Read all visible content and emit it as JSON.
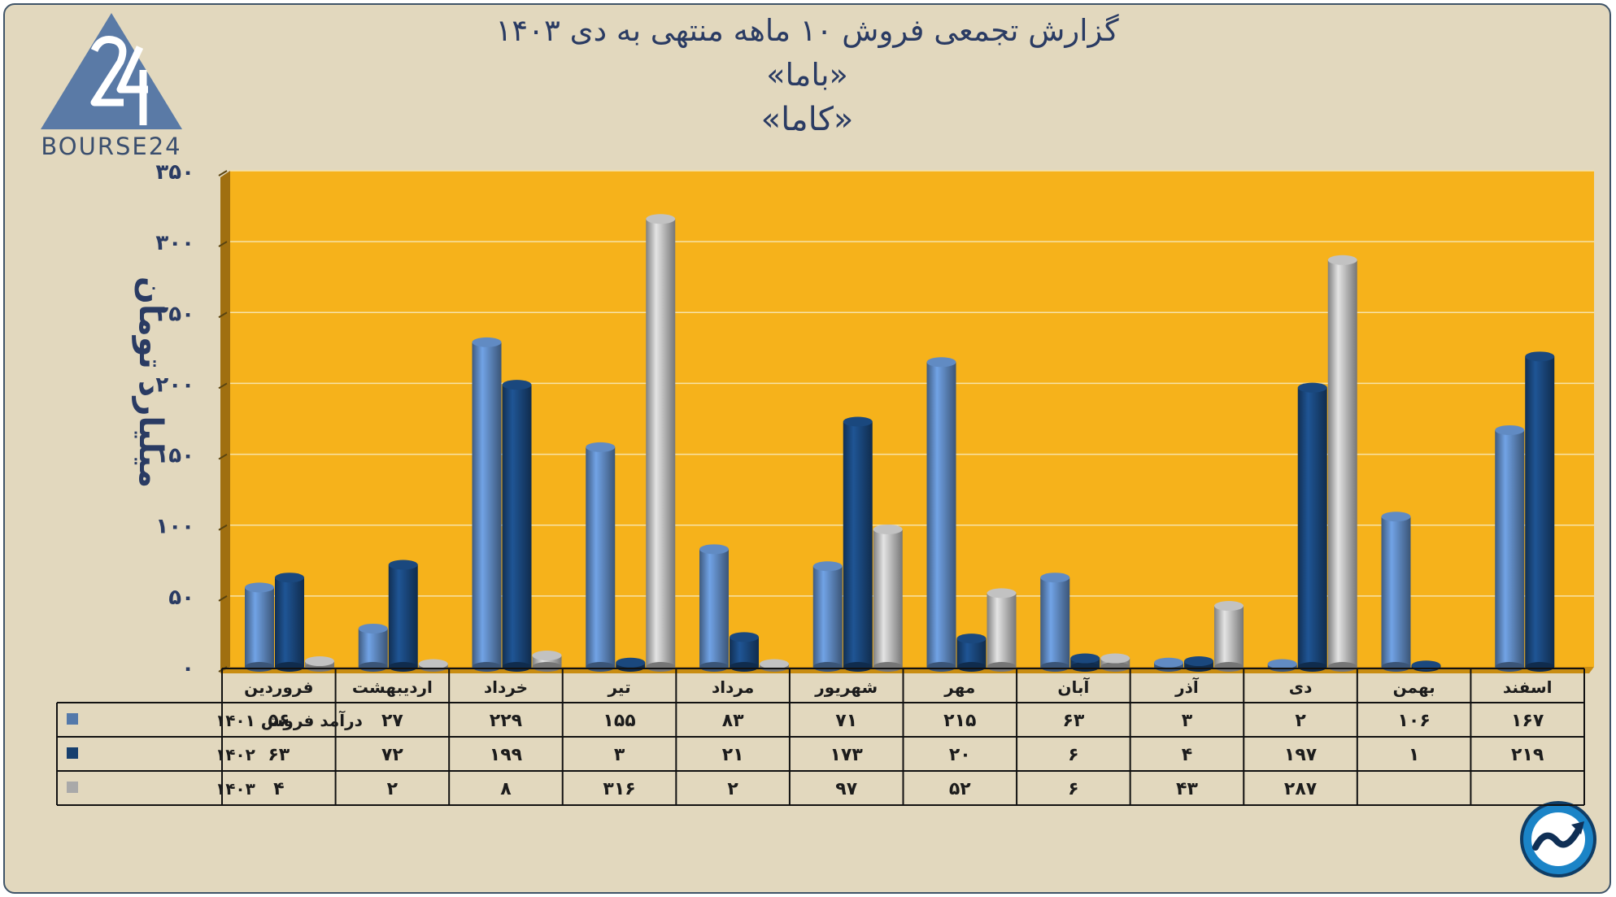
{
  "header": {
    "title_line1": "گزارش تجمعی فروش ۱۰ ماهه منتهی به دی ۱۴۰۳",
    "title_line2": "«باما»",
    "title_line3": "«کاما»"
  },
  "branding": {
    "logo_text": "BOURSE24",
    "logo_icon": "bourse24-triangle-logo",
    "badge_icon": "trend-arrow-badge-icon"
  },
  "colors": {
    "plot_background": "#f6b21b",
    "frame_background": "#e2d8be",
    "series_1401": "#5479aa",
    "series_1402": "#173f6e",
    "series_1403": "#a9a9a9",
    "text": "#2a3b63"
  },
  "chart_data": {
    "type": "bar",
    "ylabel": "میلیارد تومان",
    "ylim": [
      0,
      350
    ],
    "yticks": [
      0,
      50,
      100,
      150,
      200,
      250,
      300,
      350
    ],
    "ytick_labels": [
      "۰",
      "۵۰",
      "۱۰۰",
      "۱۵۰",
      "۲۰۰",
      "۲۵۰",
      "۳۰۰",
      "۳۵۰"
    ],
    "grid": true,
    "categories": [
      "فروردین",
      "اردیبهشت",
      "خرداد",
      "تیر",
      "مرداد",
      "شهریور",
      "مهر",
      "آبان",
      "آذر",
      "دی",
      "بهمن",
      "اسفند"
    ],
    "series": [
      {
        "name": "درآمد فروش ۱۴۰۱",
        "values": [
          56,
          27,
          229,
          155,
          83,
          71,
          215,
          63,
          3,
          2,
          106,
          167
        ],
        "labels": [
          "۵۶",
          "۲۷",
          "۲۲۹",
          "۱۵۵",
          "۸۳",
          "۷۱",
          "۲۱۵",
          "۶۳",
          "۳",
          "۲",
          "۱۰۶",
          "۱۶۷"
        ]
      },
      {
        "name": "۱۴۰۲",
        "values": [
          63,
          72,
          199,
          3,
          21,
          173,
          20,
          6,
          4,
          197,
          1,
          219
        ],
        "labels": [
          "۶۳",
          "۷۲",
          "۱۹۹",
          "۳",
          "۲۱",
          "۱۷۳",
          "۲۰",
          "۶",
          "۴",
          "۱۹۷",
          "۱",
          "۲۱۹"
        ]
      },
      {
        "name": "۱۴۰۳",
        "values": [
          4,
          2,
          8,
          316,
          2,
          97,
          52,
          6,
          43,
          287,
          null,
          null
        ],
        "labels": [
          "۴",
          "۲",
          "۸",
          "۳۱۶",
          "۲",
          "۹۷",
          "۵۲",
          "۶",
          "۴۳",
          "۲۸۷",
          "",
          ""
        ]
      }
    ]
  }
}
